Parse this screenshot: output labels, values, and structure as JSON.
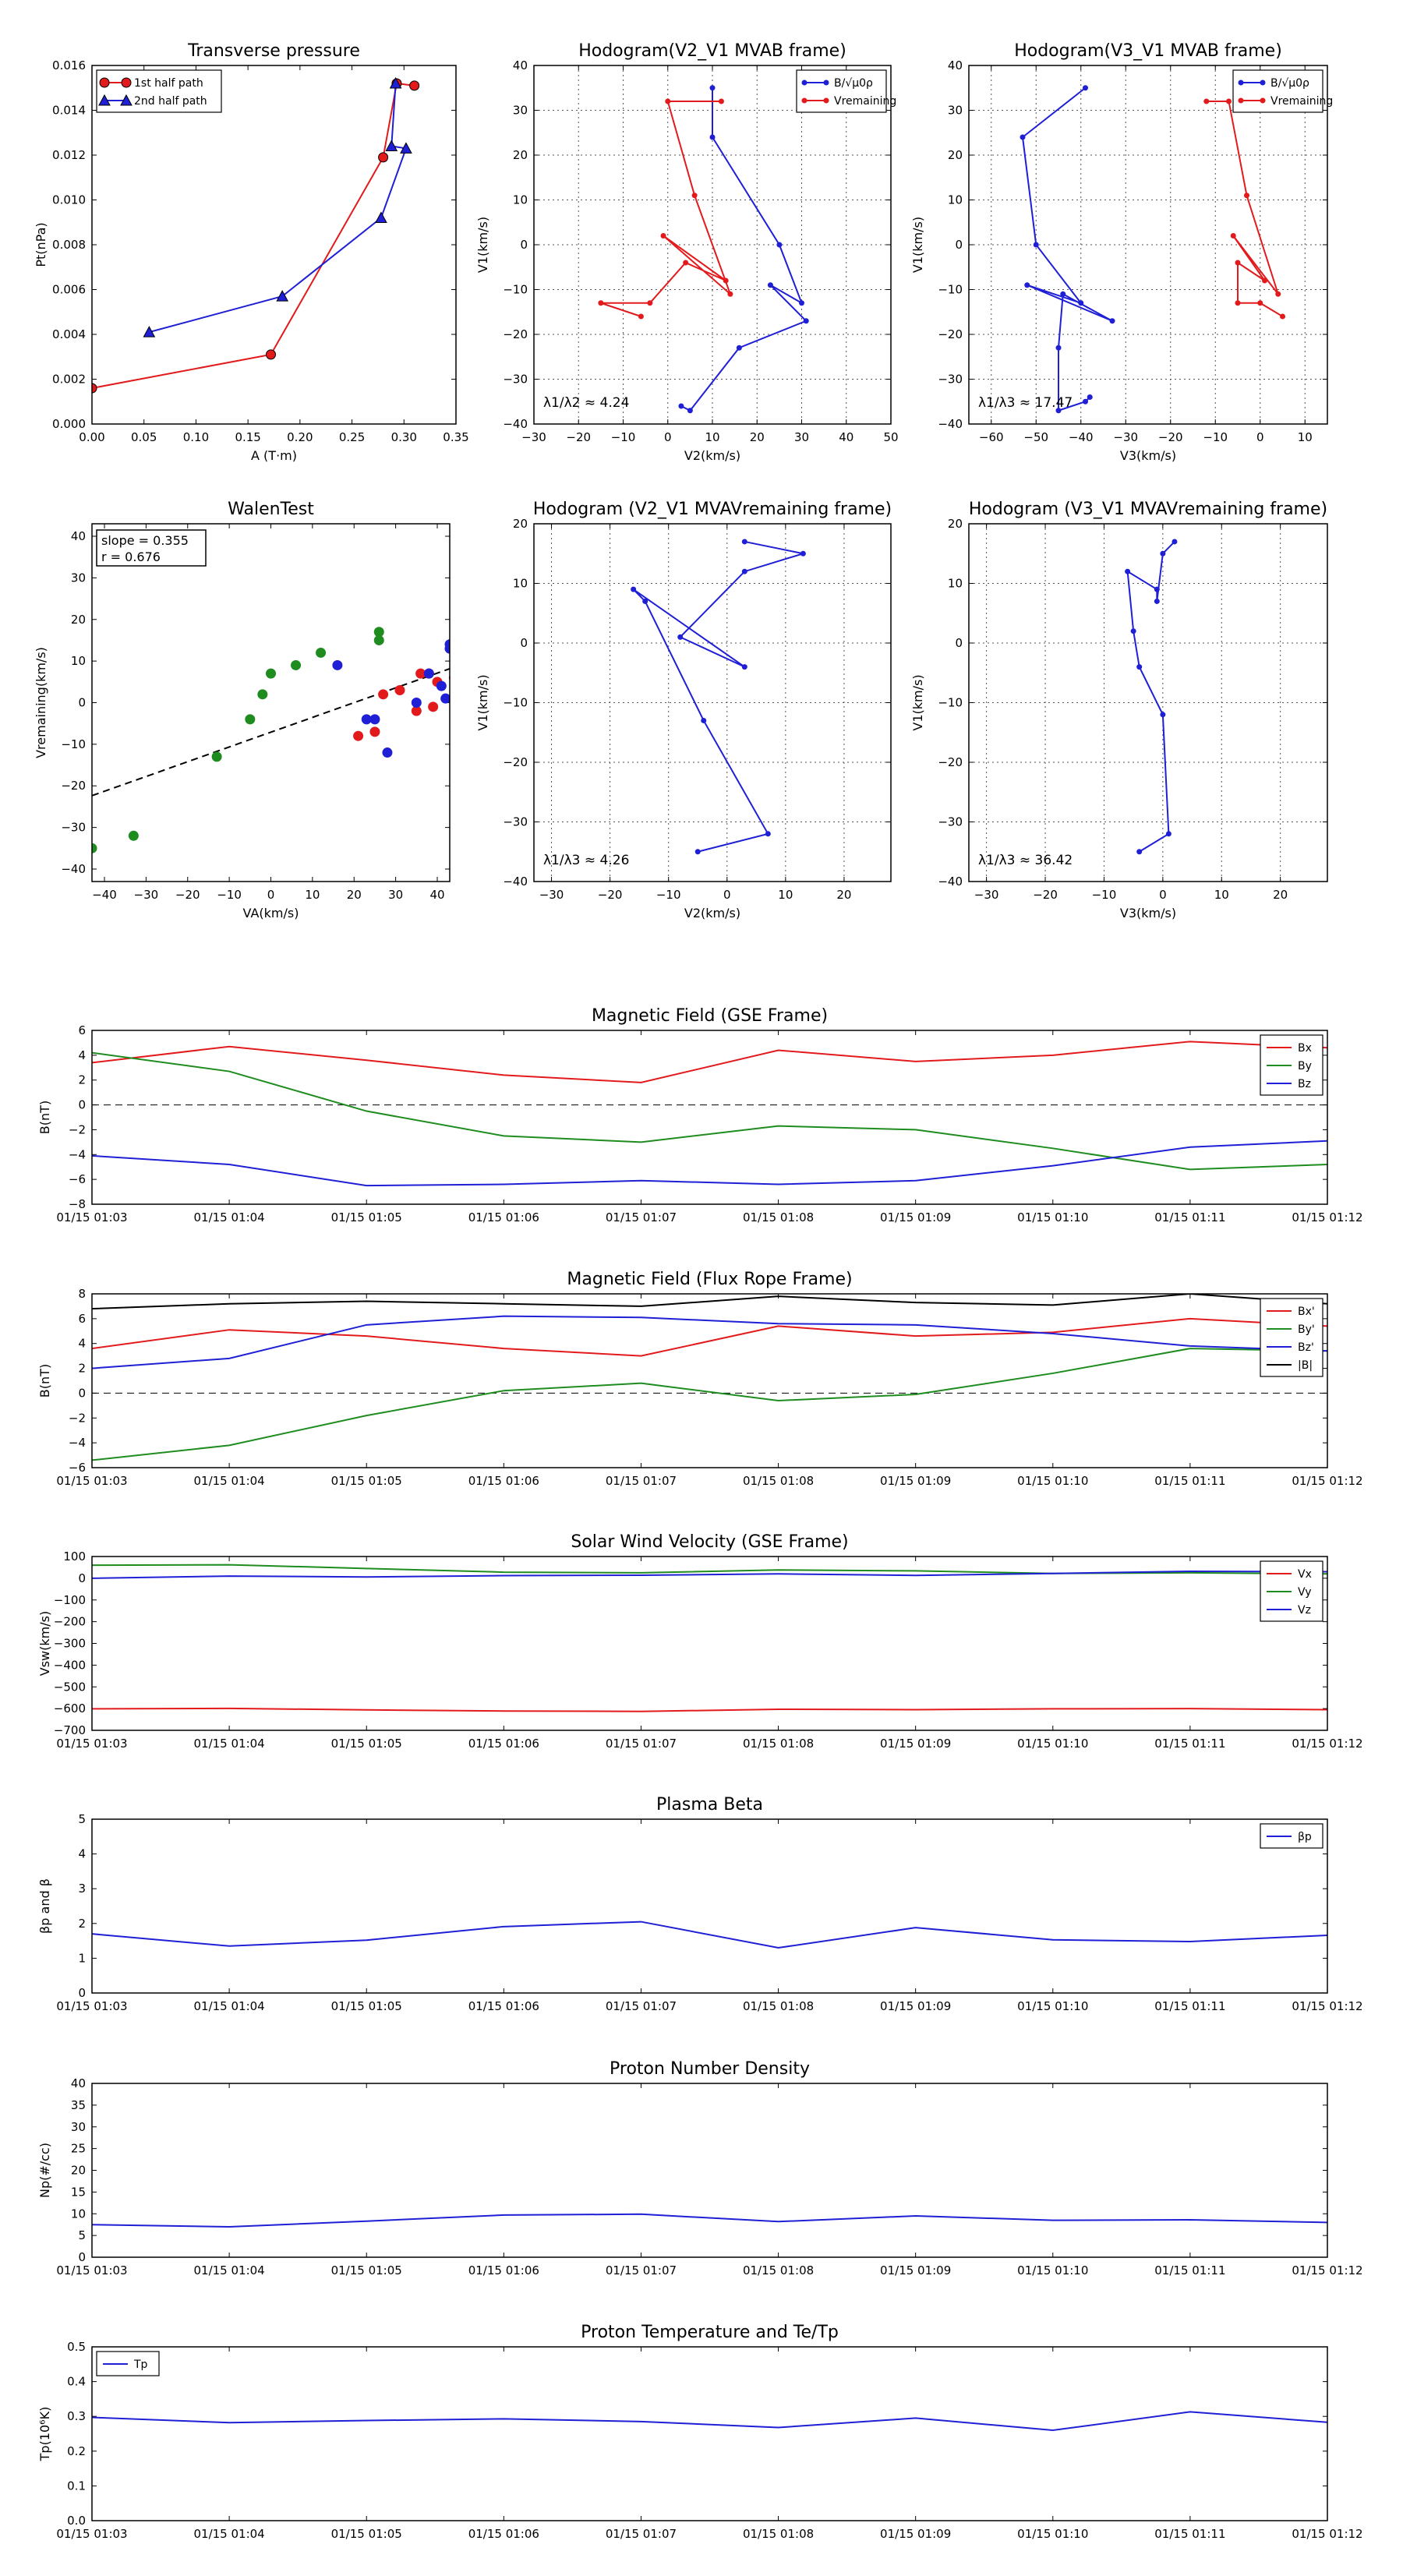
{
  "chart_data": [
    {
      "id": "transverse-pressure",
      "type": "line",
      "title": "Transverse pressure",
      "xlabel": "A (T·m)",
      "ylabel": "Pt(nPa)",
      "xlim": [
        0,
        0.35
      ],
      "ylim": [
        0,
        0.016
      ],
      "xticks": [
        "0.00",
        "0.05",
        "0.10",
        "0.15",
        "0.20",
        "0.25",
        "0.30",
        "0.35"
      ],
      "yticks": [
        "0.000",
        "0.002",
        "0.004",
        "0.006",
        "0.008",
        "0.010",
        "0.012",
        "0.014",
        "0.016"
      ],
      "legend": "top-left",
      "series": [
        {
          "name": "1st half path",
          "color": "#e31a1c",
          "marker": "circle",
          "points": [
            [
              0.0,
              0.0016
            ],
            [
              0.172,
              0.0031
            ],
            [
              0.28,
              0.0119
            ],
            [
              0.293,
              0.0152
            ],
            [
              0.31,
              0.0151
            ]
          ]
        },
        {
          "name": "2nd half path",
          "color": "#1f1fd6",
          "marker": "triangle",
          "points": [
            [
              0.055,
              0.0041
            ],
            [
              0.183,
              0.0057
            ],
            [
              0.278,
              0.0092
            ],
            [
              0.302,
              0.0123
            ],
            [
              0.288,
              0.0124
            ],
            [
              0.292,
              0.0152
            ]
          ]
        }
      ]
    },
    {
      "id": "hodogram-v2-v1-mvab",
      "type": "line",
      "title": "Hodogram(V2_V1 MVAB frame)",
      "xlabel": "V2(km/s)",
      "ylabel": "V1(km/s)",
      "xlim": [
        -30,
        50
      ],
      "ylim": [
        -40,
        40
      ],
      "xticks": [
        "−30",
        "−20",
        "−10",
        "0",
        "10",
        "20",
        "30",
        "40",
        "50"
      ],
      "yticks": [
        "−40",
        "−30",
        "−20",
        "−10",
        "0",
        "10",
        "20",
        "30",
        "40"
      ],
      "legend": "top-right",
      "annotation": "λ1/λ2 ≈ 4.24",
      "series": [
        {
          "name": "B/√μ0ρ",
          "color": "#1f1fd6",
          "marker": "dot",
          "points": [
            [
              10,
              35
            ],
            [
              10,
              24
            ],
            [
              25,
              0
            ],
            [
              30,
              -13
            ],
            [
              23,
              -9
            ],
            [
              31,
              -17
            ],
            [
              16,
              -23
            ],
            [
              5,
              -37
            ],
            [
              3,
              -36
            ]
          ]
        },
        {
          "name": "Vremaining",
          "color": "#e31a1c",
          "marker": "dot",
          "points": [
            [
              12,
              32
            ],
            [
              0,
              32
            ],
            [
              6,
              11
            ],
            [
              14,
              -11
            ],
            [
              -1,
              2
            ],
            [
              13,
              -8
            ],
            [
              4,
              -4
            ],
            [
              -4,
              -13
            ],
            [
              -15,
              -13
            ],
            [
              -6,
              -16
            ]
          ]
        }
      ]
    },
    {
      "id": "hodogram-v3-v1-mvab",
      "type": "line",
      "title": "Hodogram(V3_V1 MVAB frame)",
      "xlabel": "V3(km/s)",
      "ylabel": "V1(km/s)",
      "xlim": [
        -65,
        15
      ],
      "ylim": [
        -40,
        40
      ],
      "xticks": [
        "−60",
        "−50",
        "−40",
        "−30",
        "−20",
        "−10",
        "0",
        "10"
      ],
      "yticks": [
        "−40",
        "−30",
        "−20",
        "−10",
        "0",
        "10",
        "20",
        "30",
        "40"
      ],
      "legend": "top-right",
      "annotation": "λ1/λ3 ≈ 17.47",
      "series": [
        {
          "name": "B/√μ0ρ",
          "color": "#1f1fd6",
          "marker": "dot",
          "points": [
            [
              -39,
              35
            ],
            [
              -53,
              24
            ],
            [
              -50,
              0
            ],
            [
              -40,
              -13
            ],
            [
              -52,
              -9
            ],
            [
              -33,
              -17
            ],
            [
              -44,
              -11
            ],
            [
              -45,
              -23
            ],
            [
              -45,
              -37
            ],
            [
              -39,
              -35
            ],
            [
              -38,
              -34
            ]
          ]
        },
        {
          "name": "Vremaining",
          "color": "#e31a1c",
          "marker": "dot",
          "points": [
            [
              -12,
              32
            ],
            [
              -7,
              32
            ],
            [
              -3,
              11
            ],
            [
              4,
              -11
            ],
            [
              -6,
              2
            ],
            [
              1,
              -8
            ],
            [
              -5,
              -4
            ],
            [
              -5,
              -13
            ],
            [
              0,
              -13
            ],
            [
              5,
              -16
            ]
          ]
        }
      ]
    },
    {
      "id": "walen-test",
      "type": "scatter",
      "title": "WalenTest",
      "xlabel": "VA(km/s)",
      "ylabel": "Vremaining(km/s)",
      "xlim": [
        -43,
        43
      ],
      "ylim": [
        -43,
        43
      ],
      "xticks": [
        "−40",
        "−30",
        "−20",
        "−10",
        "0",
        "10",
        "20",
        "30",
        "40"
      ],
      "yticks": [
        "−40",
        "−30",
        "−20",
        "−10",
        "0",
        "10",
        "20",
        "30",
        "40"
      ],
      "legend": "top-left",
      "stats": [
        "slope = 0.355",
        "r = 0.676"
      ],
      "fit_line": {
        "slope": 0.355,
        "intercept": -7.1
      },
      "series": [
        {
          "color": "#1e8c1e",
          "points": [
            [
              -43,
              -35
            ],
            [
              -33,
              -32
            ],
            [
              -13,
              -13
            ],
            [
              -5,
              -4
            ],
            [
              -2,
              2
            ],
            [
              0,
              7
            ],
            [
              6,
              9
            ],
            [
              12,
              12
            ],
            [
              26,
              17
            ],
            [
              26,
              15
            ]
          ]
        },
        {
          "color": "#e31a1c",
          "points": [
            [
              21,
              -8
            ],
            [
              25,
              -7
            ],
            [
              27,
              2
            ],
            [
              31,
              3
            ],
            [
              35,
              -2
            ],
            [
              36,
              7
            ],
            [
              38,
              7
            ],
            [
              39,
              -1
            ],
            [
              40,
              5
            ],
            [
              44,
              6
            ]
          ]
        },
        {
          "color": "#1f1fd6",
          "points": [
            [
              16,
              9
            ],
            [
              23,
              -4
            ],
            [
              25,
              -4
            ],
            [
              28,
              -12
            ],
            [
              35,
              0
            ],
            [
              38,
              7
            ],
            [
              41,
              4
            ],
            [
              42,
              1
            ],
            [
              43,
              14
            ],
            [
              43,
              13
            ]
          ]
        }
      ]
    },
    {
      "id": "hodogram-v2-v1-mvav",
      "type": "line",
      "title": "Hodogram (V2_V1 MVAVremaining frame)",
      "xlabel": "V2(km/s)",
      "ylabel": "V1(km/s)",
      "xlim": [
        -33,
        28
      ],
      "ylim": [
        -40,
        20
      ],
      "xticks": [
        "−30",
        "−20",
        "−10",
        "0",
        "10",
        "20"
      ],
      "yticks": [
        "−40",
        "−30",
        "−20",
        "−10",
        "0",
        "10",
        "20"
      ],
      "annotation": "λ1/λ3 ≈ 4.26",
      "series": [
        {
          "color": "#1f1fd6",
          "marker": "dot",
          "points": [
            [
              3,
              17
            ],
            [
              13,
              15
            ],
            [
              3,
              12
            ],
            [
              -8,
              1
            ],
            [
              3,
              -4
            ],
            [
              -16,
              9
            ],
            [
              -14,
              7
            ],
            [
              -4,
              -13
            ],
            [
              7,
              -32
            ],
            [
              -5,
              -35
            ]
          ]
        }
      ]
    },
    {
      "id": "hodogram-v3-v1-mvav",
      "type": "line",
      "title": "Hodogram (V3_V1 MVAVremaining frame)",
      "xlabel": "V3(km/s)",
      "ylabel": "V1(km/s)",
      "xlim": [
        -33,
        28
      ],
      "ylim": [
        -40,
        20
      ],
      "xticks": [
        "−30",
        "−20",
        "−10",
        "0",
        "10",
        "20"
      ],
      "yticks": [
        "−40",
        "−30",
        "−20",
        "−10",
        "0",
        "10",
        "20"
      ],
      "annotation": "λ1/λ3 ≈ 36.42",
      "series": [
        {
          "color": "#1f1fd6",
          "marker": "dot",
          "points": [
            [
              2,
              17
            ],
            [
              0,
              15
            ],
            [
              -1,
              7
            ],
            [
              -1,
              9
            ],
            [
              -6,
              12
            ],
            [
              -5,
              2
            ],
            [
              -4,
              -4
            ],
            [
              0,
              -12
            ],
            [
              1,
              -32
            ],
            [
              -4,
              -35
            ]
          ]
        }
      ]
    },
    {
      "id": "magnetic-field-gse",
      "type": "line",
      "title": "Magnetic Field (GSE Frame)",
      "ylabel": "B(nT)",
      "ylim": [
        -8,
        6
      ],
      "yticks": [
        "−8",
        "−6",
        "−4",
        "−2",
        "0",
        "2",
        "4",
        "6"
      ],
      "categories": [
        "01/15 01:03",
        "01/15 01:04",
        "01/15 01:05",
        "01/15 01:06",
        "01/15 01:07",
        "01/15 01:08",
        "01/15 01:09",
        "01/15 01:10",
        "01/15 01:11",
        "01/15 01:12"
      ],
      "zero_line": true,
      "legend": "top-right",
      "series": [
        {
          "name": "Bx",
          "color": "#e31a1c",
          "values": [
            3.4,
            4.7,
            3.6,
            2.4,
            1.8,
            4.4,
            3.5,
            4.0,
            5.1,
            4.6
          ]
        },
        {
          "name": "By",
          "color": "#1e8c1e",
          "values": [
            4.2,
            2.7,
            -0.5,
            -2.5,
            -3.0,
            -1.7,
            -2.0,
            -3.5,
            -5.2,
            -4.8
          ]
        },
        {
          "name": "Bz",
          "color": "#1f1fd6",
          "values": [
            -4.1,
            -4.8,
            -6.5,
            -6.4,
            -6.1,
            -6.4,
            -6.1,
            -4.9,
            -3.4,
            -2.9
          ]
        }
      ]
    },
    {
      "id": "magnetic-field-flux-rope",
      "type": "line",
      "title": "Magnetic Field (Flux Rope Frame)",
      "ylabel": "B(nT)",
      "ylim": [
        -6,
        8
      ],
      "yticks": [
        "−6",
        "−4",
        "−2",
        "0",
        "2",
        "4",
        "6",
        "8"
      ],
      "categories": [
        "01/15 01:03",
        "01/15 01:04",
        "01/15 01:05",
        "01/15 01:06",
        "01/15 01:07",
        "01/15 01:08",
        "01/15 01:09",
        "01/15 01:10",
        "01/15 01:11",
        "01/15 01:12"
      ],
      "zero_line": true,
      "legend": "top-right",
      "series": [
        {
          "name": "Bx'",
          "color": "#e31a1c",
          "values": [
            3.6,
            5.1,
            4.6,
            3.6,
            3.0,
            5.4,
            4.6,
            4.9,
            6.0,
            5.4
          ]
        },
        {
          "name": "By'",
          "color": "#1e8c1e",
          "values": [
            -5.4,
            -4.2,
            -1.8,
            0.2,
            0.8,
            -0.6,
            -0.1,
            1.6,
            3.6,
            3.4
          ]
        },
        {
          "name": "Bz'",
          "color": "#1f1fd6",
          "values": [
            2.0,
            2.8,
            5.5,
            6.2,
            6.1,
            5.6,
            5.5,
            4.8,
            3.8,
            3.4
          ]
        },
        {
          "name": "|B|",
          "color": "#000000",
          "values": [
            6.8,
            7.2,
            7.4,
            7.2,
            7.0,
            7.8,
            7.3,
            7.1,
            8.0,
            7.2
          ]
        }
      ]
    },
    {
      "id": "solar-wind-velocity",
      "type": "line",
      "title": "Solar Wind Velocity (GSE Frame)",
      "ylabel": "Vsw(km/s)",
      "ylim": [
        -700,
        100
      ],
      "yticks": [
        "−700",
        "−600",
        "−500",
        "−400",
        "−300",
        "−200",
        "−100",
        "0",
        "100"
      ],
      "categories": [
        "01/15 01:03",
        "01/15 01:04",
        "01/15 01:05",
        "01/15 01:06",
        "01/15 01:07",
        "01/15 01:08",
        "01/15 01:09",
        "01/15 01:10",
        "01/15 01:11",
        "01/15 01:12"
      ],
      "legend": "top-right",
      "series": [
        {
          "name": "Vx",
          "color": "#e31a1c",
          "values": [
            -601,
            -599,
            -606,
            -611,
            -613,
            -603,
            -605,
            -601,
            -600,
            -605
          ]
        },
        {
          "name": "Vy",
          "color": "#1e8c1e",
          "values": [
            60,
            62,
            45,
            28,
            25,
            38,
            34,
            22,
            25,
            20
          ]
        },
        {
          "name": "Vz",
          "color": "#1f1fd6",
          "values": [
            0,
            10,
            6,
            12,
            14,
            20,
            13,
            22,
            32,
            30
          ]
        }
      ]
    },
    {
      "id": "plasma-beta",
      "type": "line",
      "title": "Plasma Beta",
      "ylabel": "βp and β",
      "ylim": [
        0,
        5
      ],
      "yticks": [
        "0",
        "1",
        "2",
        "3",
        "4",
        "5"
      ],
      "categories": [
        "01/15 01:03",
        "01/15 01:04",
        "01/15 01:05",
        "01/15 01:06",
        "01/15 01:07",
        "01/15 01:08",
        "01/15 01:09",
        "01/15 01:10",
        "01/15 01:11",
        "01/15 01:12"
      ],
      "legend": "top-right",
      "series": [
        {
          "name": "βp",
          "color": "#1f1fd6",
          "values": [
            1.7,
            1.35,
            1.52,
            1.91,
            2.05,
            1.3,
            1.88,
            1.53,
            1.48,
            1.66
          ]
        }
      ]
    },
    {
      "id": "proton-number-density",
      "type": "line",
      "title": "Proton Number Density",
      "ylabel": "Np(#/cc)",
      "ylim": [
        0,
        40
      ],
      "yticks": [
        "0",
        "5",
        "10",
        "15",
        "20",
        "25",
        "30",
        "35",
        "40"
      ],
      "categories": [
        "01/15 01:03",
        "01/15 01:04",
        "01/15 01:05",
        "01/15 01:06",
        "01/15 01:07",
        "01/15 01:08",
        "01/15 01:09",
        "01/15 01:10",
        "01/15 01:11",
        "01/15 01:12"
      ],
      "series": [
        {
          "color": "#1f1fd6",
          "values": [
            7.5,
            7.0,
            8.3,
            9.7,
            9.9,
            8.2,
            9.5,
            8.5,
            8.6,
            8.0
          ]
        }
      ]
    },
    {
      "id": "proton-temperature",
      "type": "line",
      "title": "Proton Temperature and Te/Tp",
      "ylabel": "Tp(10⁶K)",
      "ylim": [
        0,
        0.5
      ],
      "yticks": [
        "0.0",
        "0.1",
        "0.2",
        "0.3",
        "0.4",
        "0.5"
      ],
      "categories": [
        "01/15 01:03",
        "01/15 01:04",
        "01/15 01:05",
        "01/15 01:06",
        "01/15 01:07",
        "01/15 01:08",
        "01/15 01:09",
        "01/15 01:10",
        "01/15 01:11",
        "01/15 01:12"
      ],
      "legend": "top-left",
      "series": [
        {
          "name": "Tp",
          "color": "#1f1fd6",
          "values": [
            0.297,
            0.282,
            0.288,
            0.293,
            0.285,
            0.268,
            0.295,
            0.26,
            0.313,
            0.283
          ]
        }
      ]
    }
  ]
}
